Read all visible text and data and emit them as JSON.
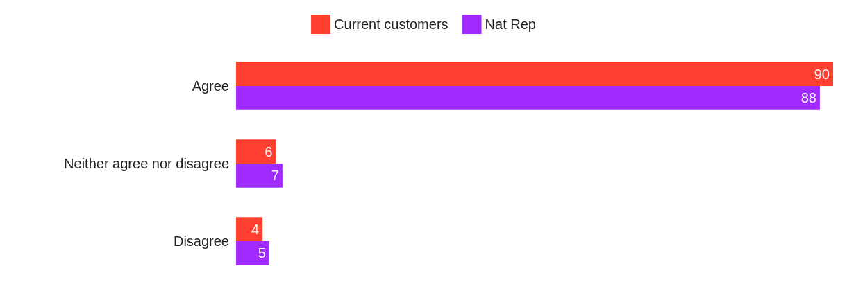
{
  "chart_data": {
    "type": "bar",
    "orientation": "horizontal",
    "categories": [
      "Agree",
      "Neither agree nor disagree",
      "Disagree"
    ],
    "series": [
      {
        "name": "Current customers",
        "color": "#ff3f2f",
        "values": [
          90,
          6,
          4
        ]
      },
      {
        "name": "Nat Rep",
        "color": "#a12bff",
        "values": [
          88,
          7,
          5
        ]
      }
    ],
    "data_labels": true,
    "legend": "top"
  }
}
